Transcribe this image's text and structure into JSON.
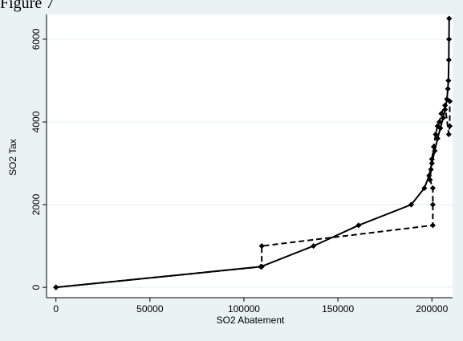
{
  "page": {
    "caption": "Figure 7"
  },
  "chart_data": {
    "type": "line",
    "title": "",
    "xlabel": "SO2 Abatement",
    "ylabel": "SO2 Tax",
    "xlim": [
      -5000,
      211000
    ],
    "ylim": [
      -250,
      6600
    ],
    "x_ticks": [
      0,
      50000,
      100000,
      150000,
      200000
    ],
    "x_tick_labels": [
      "0",
      "50000",
      "100000",
      "150000",
      "200000"
    ],
    "y_ticks": [
      0,
      2000,
      4000,
      6000
    ],
    "y_tick_labels": [
      "0",
      "2000",
      "4000",
      "6000"
    ],
    "grid": "horizontal",
    "legend": "none",
    "colors": {
      "plot_bg": "#ffffff",
      "outer_bg": "#eaf2f3",
      "grid": "#e6eeef",
      "series": "#000000"
    },
    "series": [
      {
        "style": "solid",
        "marker": "diamond",
        "points": [
          [
            0,
            0
          ],
          [
            109000,
            500
          ],
          [
            137000,
            1000
          ],
          [
            161000,
            1500
          ],
          [
            189000,
            2000
          ],
          [
            196000,
            2400
          ],
          [
            198500,
            2700
          ],
          [
            200000,
            3000
          ],
          [
            201500,
            3300
          ],
          [
            203000,
            3600
          ],
          [
            204500,
            3850
          ],
          [
            206000,
            4100
          ],
          [
            207000,
            4300
          ],
          [
            208000,
            4550
          ],
          [
            208500,
            4800
          ],
          [
            208800,
            5000
          ],
          [
            209000,
            5500
          ],
          [
            209100,
            6000
          ],
          [
            209200,
            6500
          ]
        ]
      },
      {
        "style": "dashed",
        "marker": "diamond",
        "points": [
          [
            0,
            0
          ],
          [
            109500,
            500
          ],
          [
            109500,
            1000
          ],
          [
            200500,
            1500
          ],
          [
            200500,
            2000
          ],
          [
            200500,
            2400
          ],
          [
            199000,
            2600
          ],
          [
            199500,
            2850
          ],
          [
            200000,
            3100
          ],
          [
            201000,
            3400
          ],
          [
            202000,
            3700
          ],
          [
            203000,
            3900
          ],
          [
            204000,
            4000
          ],
          [
            205000,
            4200
          ],
          [
            207000,
            4400
          ],
          [
            209000,
            3700
          ],
          [
            209500,
            3900
          ],
          [
            209500,
            4500
          ]
        ]
      }
    ]
  }
}
